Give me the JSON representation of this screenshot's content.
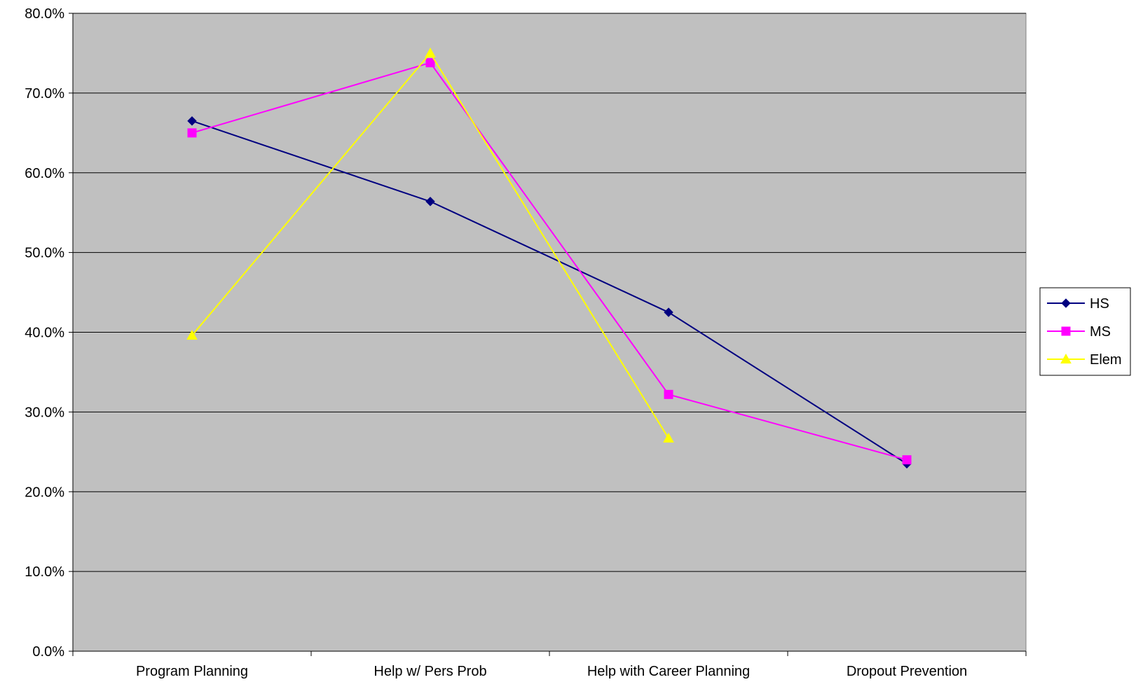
{
  "chart_data": {
    "type": "line",
    "categories": [
      "Program Planning",
      "Help w/ Pers Prob",
      "Help with Career Planning",
      "Dropout Prevention"
    ],
    "series": [
      {
        "name": "HS",
        "values": [
          0.665,
          0.564,
          0.425,
          0.235
        ],
        "color": "#000080",
        "marker": "diamond"
      },
      {
        "name": "MS",
        "values": [
          0.65,
          0.738,
          0.322,
          0.24
        ],
        "color": "#ff00ff",
        "marker": "square"
      },
      {
        "name": "Elem",
        "values": [
          0.396,
          0.75,
          0.267,
          null
        ],
        "color": "#ffff00",
        "marker": "triangle"
      }
    ],
    "ylim": [
      0,
      0.8
    ],
    "yticks": [
      "0.0%",
      "10.0%",
      "20.0%",
      "30.0%",
      "40.0%",
      "50.0%",
      "60.0%",
      "70.0%",
      "80.0%"
    ],
    "grid": true,
    "plot_background": "#c0c0c0",
    "legend_position": "right"
  }
}
